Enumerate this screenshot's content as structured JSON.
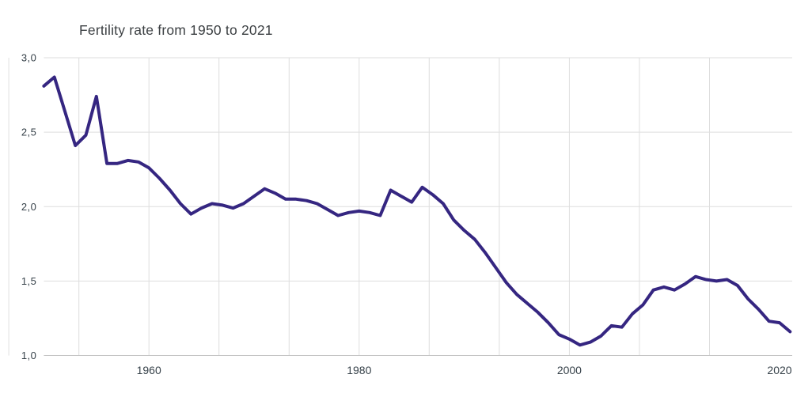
{
  "title": "Fertility rate from 1950 to 2021",
  "y_axis": {
    "range": [
      1.0,
      3.0
    ],
    "ticks": [
      {
        "value": 3.0,
        "label": "3,0"
      },
      {
        "value": 2.5,
        "label": "2,5"
      },
      {
        "value": 2.0,
        "label": "2,0"
      },
      {
        "value": 1.5,
        "label": "1,5"
      },
      {
        "value": 1.0,
        "label": "1,0"
      }
    ]
  },
  "x_axis": {
    "range": [
      1950,
      2021
    ],
    "ticks": [
      {
        "value": 1960,
        "label": "1960"
      },
      {
        "value": 1980,
        "label": "1980"
      },
      {
        "value": 2000,
        "label": "2000"
      },
      {
        "value": 2020,
        "label": "2020"
      }
    ]
  },
  "colors": {
    "line": "#352681",
    "gridline": "#dedede",
    "axis_line": "#c4c4c4",
    "tick_text": "#37424a",
    "title_text": "#3c4043"
  },
  "chart_data": {
    "type": "line",
    "title": "Fertility rate from 1950 to 2021",
    "xlabel": "",
    "ylabel": "",
    "x_range": [
      1950,
      2021
    ],
    "ylim": [
      1.0,
      3.0
    ],
    "grid": true,
    "legend": false,
    "decimal_separator": ",",
    "years": [
      1950,
      1951,
      1952,
      1953,
      1954,
      1955,
      1956,
      1957,
      1958,
      1959,
      1960,
      1961,
      1962,
      1963,
      1964,
      1965,
      1966,
      1967,
      1968,
      1969,
      1970,
      1971,
      1972,
      1973,
      1974,
      1975,
      1976,
      1977,
      1978,
      1979,
      1980,
      1981,
      1982,
      1983,
      1984,
      1985,
      1986,
      1987,
      1988,
      1989,
      1990,
      1991,
      1992,
      1993,
      1994,
      1995,
      1996,
      1997,
      1998,
      1999,
      2000,
      2001,
      2002,
      2003,
      2004,
      2005,
      2006,
      2007,
      2008,
      2009,
      2010,
      2011,
      2012,
      2013,
      2014,
      2015,
      2016,
      2017,
      2018,
      2019,
      2020,
      2021
    ],
    "values": [
      2.81,
      2.87,
      2.64,
      2.41,
      2.48,
      2.74,
      2.29,
      2.29,
      2.31,
      2.3,
      2.26,
      2.19,
      2.11,
      2.02,
      1.95,
      1.99,
      2.02,
      2.01,
      1.99,
      2.02,
      2.07,
      2.12,
      2.09,
      2.05,
      2.05,
      2.04,
      2.02,
      1.98,
      1.94,
      1.96,
      1.97,
      1.96,
      1.94,
      2.11,
      2.07,
      2.03,
      2.13,
      2.08,
      2.02,
      1.91,
      1.84,
      1.78,
      1.69,
      1.59,
      1.49,
      1.41,
      1.35,
      1.29,
      1.22,
      1.14,
      1.11,
      1.07,
      1.09,
      1.13,
      1.2,
      1.19,
      1.28,
      1.34,
      1.44,
      1.46,
      1.44,
      1.48,
      1.53,
      1.51,
      1.5,
      1.51,
      1.47,
      1.38,
      1.31,
      1.23,
      1.22,
      1.16
    ]
  }
}
